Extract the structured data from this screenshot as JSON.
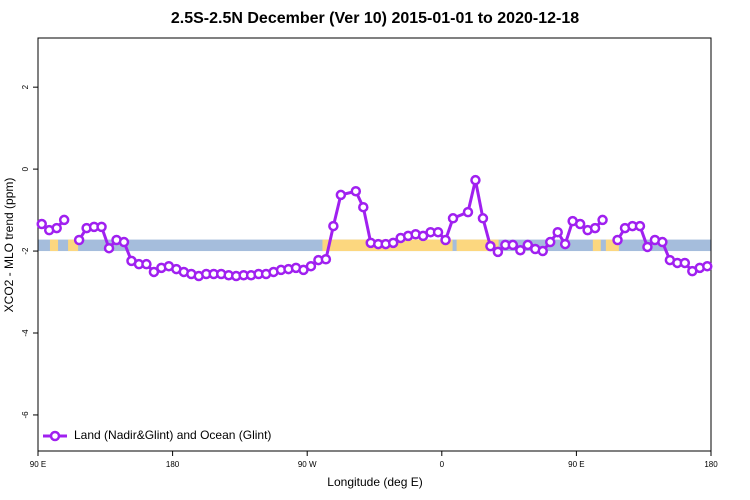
{
  "chart_data": {
    "type": "line",
    "title": "2.5S-2.5N December (Ver 10)   2015-01-01 to 2020-12-18",
    "x_label": "Longitude (deg E)",
    "y_label": "XCO2 - MLO trend (ppm)",
    "xlim": [
      90,
      540
    ],
    "ylim": [
      -6.88,
      3.2
    ],
    "xticks": [
      {
        "value": 90,
        "label": "90 E"
      },
      180,
      {
        "value": 270,
        "label": "90 W"
      },
      {
        "value": 360,
        "label": "0"
      },
      {
        "value": 450,
        "label": "90 E"
      },
      {
        "value": 540,
        "label": "180"
      }
    ],
    "yticks": [
      2,
      0,
      -2,
      -4,
      -6
    ],
    "legend": "bottom-left",
    "band": {
      "range": [
        -2.0,
        -1.72
      ],
      "color": "#a5bddc",
      "land_color": "#fcd77f",
      "land_segments": [
        [
          98,
          103.4
        ],
        [
          110.1,
          116.8
        ],
        [
          280.2,
          367.2
        ],
        [
          369.9,
          398
        ],
        [
          461,
          466.3
        ],
        [
          469.7,
          478.4
        ]
      ]
    },
    "series": [
      {
        "name": "Land (Nadir&Glint) and Ocean (Glint)",
        "color": "#a020f0",
        "x": [
          92.5,
          97.5,
          102.5,
          107.5,
          112.5,
          117.5,
          122.5,
          127.5,
          132.5,
          137.5,
          142.5,
          147.5,
          152.5,
          157.5,
          162.5,
          167.5,
          172.5,
          177.5,
          182.5,
          187.5,
          192.5,
          197.5,
          202.5,
          207.5,
          212.5,
          217.5,
          222.5,
          227.5,
          232.5,
          237.5,
          242.5,
          247.5,
          252.5,
          257.5,
          262.5,
          267.5,
          272.5,
          277.5,
          282.5,
          287.5,
          292.5,
          302.5,
          307.5,
          312.5,
          317.5,
          322.5,
          327.5,
          332.5,
          337.5,
          342.5,
          347.5,
          352.5,
          357.5,
          362.5,
          367.5,
          377.5,
          382.5,
          387.5,
          392.5,
          397.5,
          402.5,
          407.5,
          412.5,
          417.5,
          422.5,
          427.5,
          432.5,
          437.5,
          442.5,
          447.5,
          452.5,
          457.5,
          462.5,
          467.5,
          472.5,
          477.5,
          482.5,
          487.5,
          492.5,
          497.5,
          502.5,
          507.5,
          512.5,
          517.5,
          522.5,
          527.5,
          532.5,
          537.5
        ],
        "values": [
          -1.34,
          -1.49,
          -1.44,
          -1.24,
          null,
          -1.73,
          -1.44,
          -1.41,
          -1.41,
          -1.93,
          -1.73,
          -1.78,
          -2.24,
          -2.32,
          -2.32,
          -2.51,
          -2.41,
          -2.37,
          -2.44,
          -2.51,
          -2.56,
          -2.61,
          -2.56,
          -2.56,
          -2.56,
          -2.59,
          -2.61,
          -2.59,
          -2.59,
          -2.56,
          -2.56,
          -2.51,
          -2.46,
          -2.44,
          -2.41,
          -2.46,
          -2.37,
          -2.22,
          -2.2,
          -1.39,
          -0.63,
          -0.54,
          -0.93,
          -1.8,
          -1.83,
          -1.83,
          -1.8,
          -1.68,
          -1.63,
          -1.59,
          -1.63,
          -1.54,
          -1.54,
          -1.73,
          -1.2,
          -1.05,
          -0.27,
          -1.2,
          -1.88,
          -2.02,
          -1.85,
          -1.85,
          -1.98,
          -1.85,
          -1.95,
          -2.0,
          -1.78,
          -1.54,
          -1.83,
          -1.27,
          -1.34,
          -1.49,
          -1.44,
          -1.24,
          null,
          -1.73,
          -1.44,
          -1.39,
          -1.39,
          -1.9,
          -1.73,
          -1.78,
          -2.22,
          -2.29,
          -2.29,
          -2.49,
          -2.41,
          -2.37
        ]
      }
    ]
  }
}
